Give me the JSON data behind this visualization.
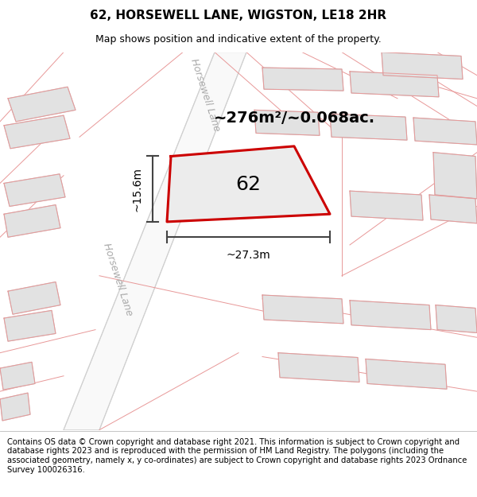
{
  "title": "62, HORSEWELL LANE, WIGSTON, LE18 2HR",
  "subtitle": "Map shows position and indicative extent of the property.",
  "footer": "Contains OS data © Crown copyright and database right 2021. This information is subject to Crown copyright and database rights 2023 and is reproduced with the permission of HM Land Registry. The polygons (including the associated geometry, namely x, y co-ordinates) are subject to Crown copyright and database rights 2023 Ordnance Survey 100026316.",
  "area_label": "~276m²/~0.068ac.",
  "width_label": "~27.3m",
  "height_label": "~15.6m",
  "number_label": "62",
  "road_label_upper": "Horsewell Lane",
  "road_label_lower": "Horsewell Lane",
  "bg_color": "#f7f7f7",
  "building_fill": "#e2e2e2",
  "building_edge": "#c8c8c8",
  "road_fill": "#ffffff",
  "plot_color": "#cc0000",
  "plot_fill": "#e8e8e8",
  "boundary_color": "#e89898",
  "dim_color": "#444444",
  "road_label_color": "#aaaaaa",
  "title_fs": 11,
  "subtitle_fs": 9,
  "footer_fs": 7.2,
  "area_fs": 14,
  "number_fs": 18,
  "dim_fs": 10,
  "road_fs": 9
}
